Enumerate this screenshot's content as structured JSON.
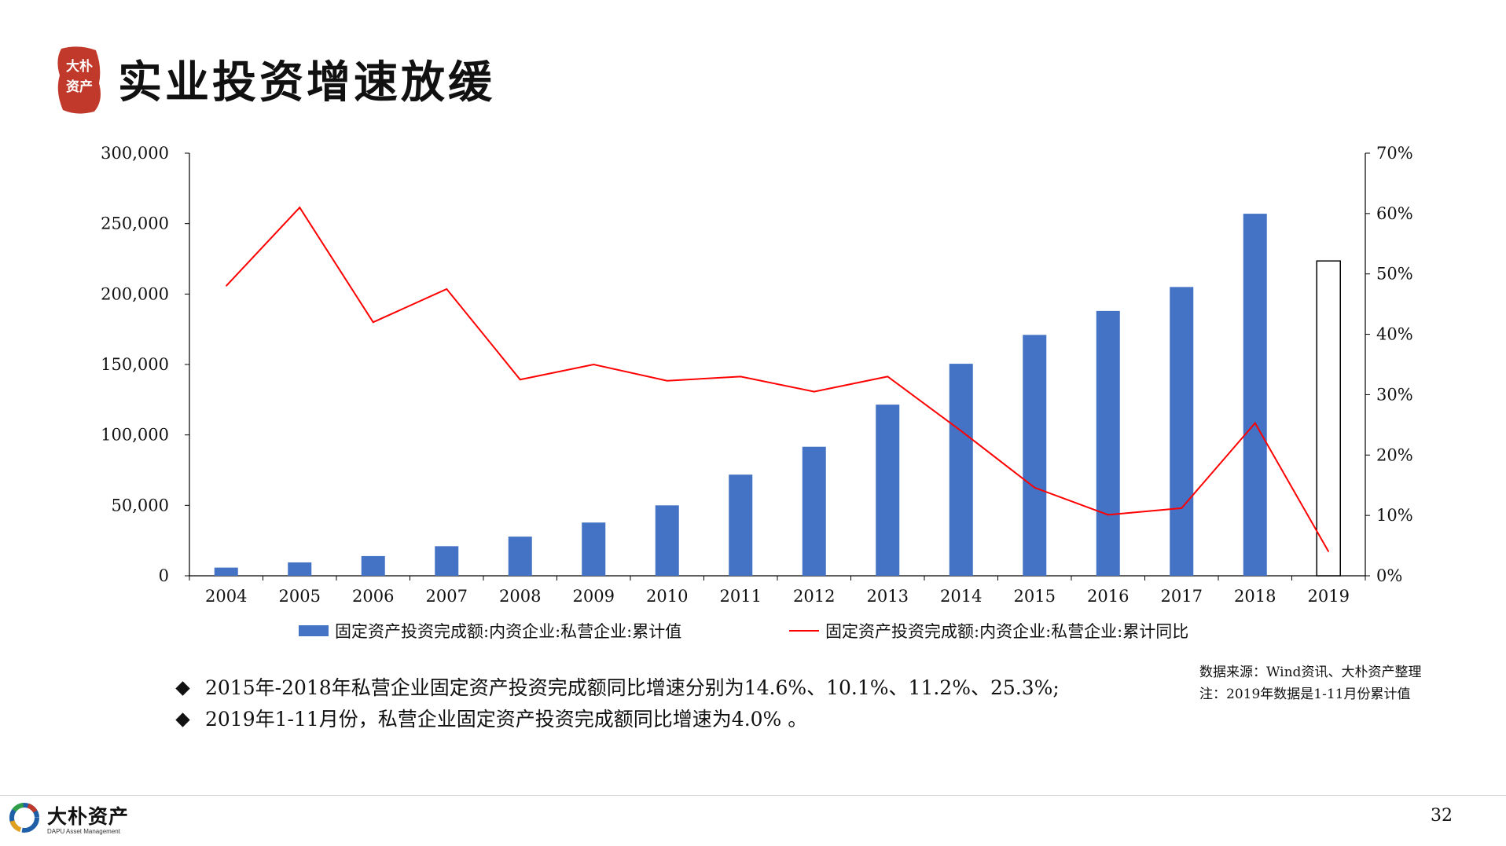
{
  "slide": {
    "title": "实业投资增速放缓",
    "seal_text": [
      "大朴",
      "资产"
    ],
    "page_number": "32"
  },
  "colors": {
    "bar": "#4472C4",
    "line": "#FF0000",
    "bar_outline_2019": "#000000"
  },
  "chart_data": {
    "type": "bar+line",
    "categories": [
      "2004",
      "2005",
      "2006",
      "2007",
      "2008",
      "2009",
      "2010",
      "2011",
      "2012",
      "2013",
      "2014",
      "2015",
      "2016",
      "2017",
      "2018",
      "2019"
    ],
    "series": [
      {
        "name": "固定资产投资完成额:内资企业:私营企业:累计值",
        "type": "bar",
        "axis": "left",
        "values": [
          5800,
          9500,
          14000,
          21000,
          27800,
          37800,
          50000,
          71800,
          91600,
          121500,
          150500,
          171000,
          188000,
          205000,
          257000,
          223500
        ]
      },
      {
        "name": "固定资产投资完成额:内资企业:私营企业:累计同比",
        "type": "line",
        "axis": "right",
        "values": [
          48.0,
          61.0,
          42.0,
          47.5,
          32.5,
          35.0,
          32.3,
          33.0,
          30.5,
          33.0,
          24.0,
          14.6,
          10.1,
          11.2,
          25.3,
          4.0
        ]
      }
    ],
    "y_left": {
      "min": 0,
      "max": 300000,
      "ticks": [
        "0",
        "50,000",
        "100,000",
        "150,000",
        "200,000",
        "250,000",
        "300,000"
      ]
    },
    "y_right": {
      "min": 0,
      "max": 70,
      "ticks": [
        "0%",
        "10%",
        "20%",
        "30%",
        "40%",
        "50%",
        "60%",
        "70%"
      ]
    },
    "legend_position": "bottom",
    "grid": false,
    "highlight_last_bar_hollow": true
  },
  "bullets": [
    "2015年-2018年私营企业固定资产投资完成额同比增速分别为14.6%、10.1%、11.2%、25.3%;",
    "2019年1-11月份，私营企业固定资产投资完成额同比增速为4.0% 。"
  ],
  "notes": {
    "source": "数据来源：Wind资讯、大朴资产整理",
    "remark": "注：2019年数据是1-11月份累计值"
  },
  "footer": {
    "logo_cn": "大朴资产",
    "logo_en": "DAPU Asset Management"
  }
}
